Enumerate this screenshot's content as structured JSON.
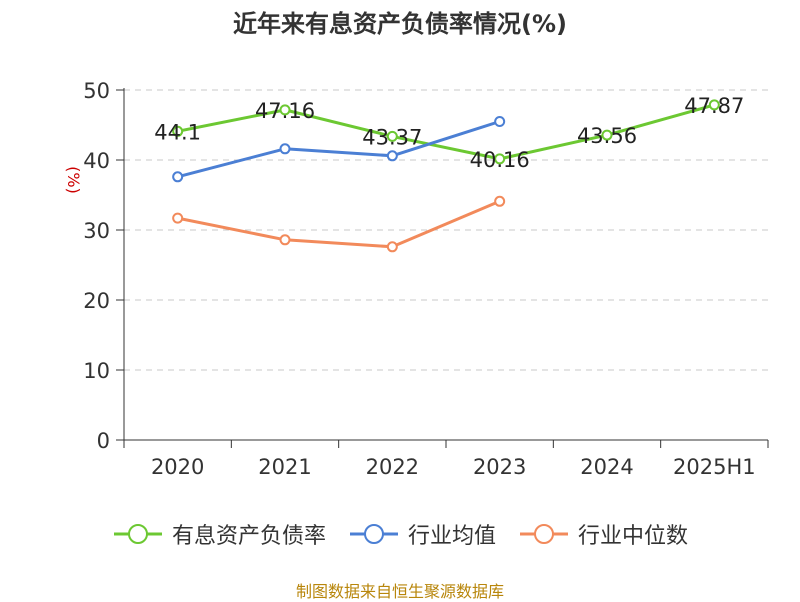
{
  "chart_data": {
    "type": "line",
    "title": "近年来有息资产负债率情况(%)",
    "ylabel": "(%)",
    "xlabel": "",
    "categories": [
      "2020",
      "2021",
      "2022",
      "2023",
      "2024",
      "2025H1"
    ],
    "ylim": [
      0,
      50
    ],
    "yticks": [
      0,
      10,
      20,
      30,
      40,
      50
    ],
    "grid": true,
    "legend_position": "bottom",
    "series": [
      {
        "name": "有息资产负债率",
        "color": "#6cc832",
        "values": [
          44.1,
          47.16,
          43.37,
          40.16,
          43.56,
          47.87
        ],
        "labels": [
          "44.1",
          "47.16",
          "43.37",
          "40.16",
          "43.56",
          "47.87"
        ]
      },
      {
        "name": "行业均值",
        "color": "#4b7fd4",
        "values": [
          37.6,
          41.6,
          40.6,
          45.5,
          null,
          null
        ]
      },
      {
        "name": "行业中位数",
        "color": "#f28a5b",
        "values": [
          31.7,
          28.6,
          27.6,
          34.1,
          null,
          null
        ]
      }
    ]
  },
  "source": "制图数据来自恒生聚源数据库"
}
